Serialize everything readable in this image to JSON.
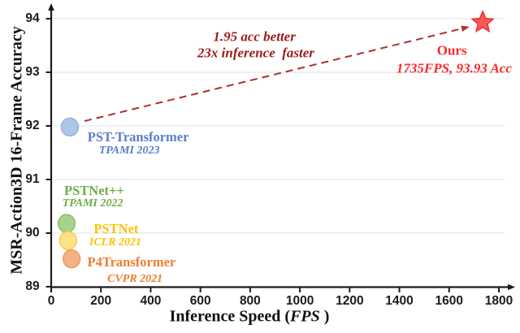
{
  "figure": {
    "background": "#ffffff"
  },
  "chart_data": {
    "type": "scatter",
    "title": "",
    "xlabel": "Inference Speed (FPS )",
    "xlabel_parts": [
      "Inference Speed (",
      "FPS",
      " )"
    ],
    "ylabel": "MSR-Action3D 16-Frame Accuracy",
    "xlim": [
      0,
      1870
    ],
    "ylim": [
      89,
      94.45
    ],
    "x_ticks": [
      0,
      200,
      400,
      600,
      800,
      1000,
      1200,
      1400,
      1600,
      1800
    ],
    "y_ticks": [
      89,
      90,
      91,
      92,
      93,
      94
    ],
    "grid": "horizontal",
    "grid_color": "#e7e7e7",
    "axis_color": "#1b1b1b",
    "tick_label_color": "#1b1b1b",
    "series": [
      {
        "name": "PST-Transformer",
        "venue": "TPAMI 2023",
        "x": 75,
        "y": 91.98,
        "marker": "circle",
        "marker_fill": "#aec6e8",
        "marker_stroke": "#96b0dd",
        "text_color": "#5b7ec9",
        "name_anchor": {
          "x": 350,
          "y": 91.79
        },
        "venue_anchor": {
          "x": 314,
          "y": 91.53
        }
      },
      {
        "name": "PSTNet++",
        "venue": "TPAMI 2022",
        "x": 62,
        "y": 90.18,
        "marker": "circle",
        "marker_fill": "#a9d18e",
        "marker_stroke": "#8bc06b",
        "text_color": "#70ad47",
        "name_anchor": {
          "x": 173,
          "y": 90.79
        },
        "venue_anchor": {
          "x": 167,
          "y": 90.55
        }
      },
      {
        "name": "PSTNet",
        "venue": "ICLR 2021",
        "x": 68,
        "y": 89.86,
        "marker": "circle",
        "marker_fill": "#ffe285",
        "marker_stroke": "#fec843",
        "text_color": "#fec200",
        "name_anchor": {
          "x": 261,
          "y": 90.08
        },
        "venue_anchor": {
          "x": 258,
          "y": 89.82
        }
      },
      {
        "name": "P4Transformer",
        "venue": "CVPR 2021",
        "x": 82,
        "y": 89.52,
        "marker": "circle",
        "marker_fill": "#f4b183",
        "marker_stroke": "#ee9a5c",
        "text_color": "#ed7d31",
        "name_anchor": {
          "x": 323,
          "y": 89.45
        },
        "venue_anchor": {
          "x": 337,
          "y": 89.14
        }
      },
      {
        "name": "Ours",
        "venue": "",
        "x": 1735,
        "y": 93.93,
        "marker": "star",
        "marker_fill": "#fb5a5a",
        "marker_stroke": "#f03131",
        "text_color": "#f92a2a"
      }
    ],
    "arrow": {
      "from": {
        "x": 134,
        "y": 92.09
      },
      "to": {
        "x": 1682,
        "y": 93.85
      },
      "color": "#ad3030",
      "style": "dashed"
    },
    "annotations": [
      {
        "text": "1.95 acc better",
        "x": 817,
        "y": 93.67,
        "color": "#9e1c1c",
        "style": "bold-italic"
      },
      {
        "text": "23x inference  faster",
        "x": 823,
        "y": 93.37,
        "color": "#9e1c1c",
        "style": "bold-italic"
      },
      {
        "text": "Ours",
        "x": 1611,
        "y": 93.41,
        "color": "#f92a2a",
        "style": "bold"
      },
      {
        "text": "1735FPS, 93.93 Acc",
        "x": 1620,
        "y": 93.08,
        "color": "#f92a2a",
        "style": "bold-italic"
      }
    ]
  }
}
